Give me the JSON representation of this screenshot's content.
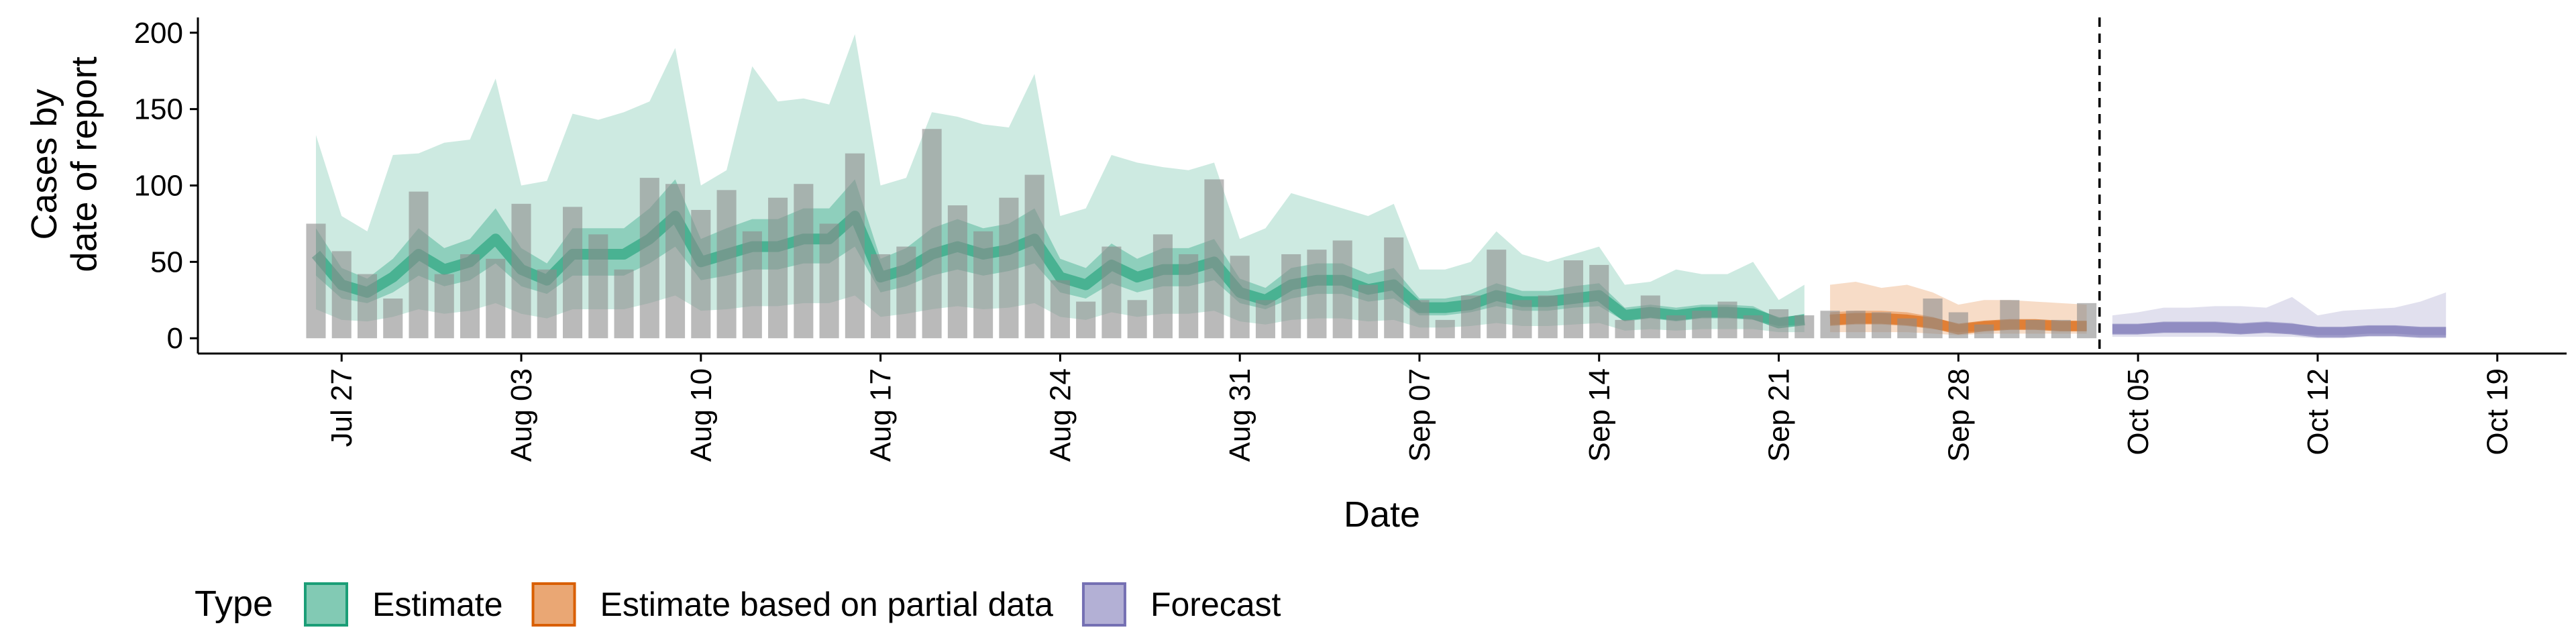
{
  "chart_data": {
    "type": "band",
    "y_label": [
      "Cases by",
      "date of report"
    ],
    "x_label": "Date",
    "legend_title": "Type",
    "xlim": [
      -5.6,
      86.7
    ],
    "ylim": [
      -10,
      210
    ],
    "yticks": [
      0,
      50,
      100,
      150,
      200
    ],
    "xticks": [
      {
        "value": 0,
        "label": "Jul 27"
      },
      {
        "value": 7,
        "label": "Aug 03"
      },
      {
        "value": 14,
        "label": "Aug 10"
      },
      {
        "value": 21,
        "label": "Aug 17"
      },
      {
        "value": 28,
        "label": "Aug 24"
      },
      {
        "value": 35,
        "label": "Aug 31"
      },
      {
        "value": 42,
        "label": "Sep 07"
      },
      {
        "value": 49,
        "label": "Sep 14"
      },
      {
        "value": 56,
        "label": "Sep 21"
      },
      {
        "value": 63,
        "label": "Sep 28"
      },
      {
        "value": 70,
        "label": "Oct 05"
      },
      {
        "value": 77,
        "label": "Oct 12"
      },
      {
        "value": 84,
        "label": "Oct 19"
      }
    ],
    "vline_x": 68.5,
    "bars": {
      "color": "#8c8c8c",
      "x": [
        -1,
        0,
        1,
        2,
        3,
        4,
        5,
        6,
        7,
        8,
        9,
        10,
        11,
        12,
        13,
        14,
        15,
        16,
        17,
        18,
        19,
        20,
        21,
        22,
        23,
        24,
        25,
        26,
        27,
        28,
        29,
        30,
        31,
        32,
        33,
        34,
        35,
        36,
        37,
        38,
        39,
        40,
        41,
        42,
        43,
        44,
        45,
        46,
        47,
        48,
        49,
        50,
        51,
        52,
        53,
        54,
        55,
        56,
        57,
        58,
        59,
        60,
        61,
        62,
        63,
        64,
        65,
        66,
        67,
        68
      ],
      "values": [
        75,
        57,
        42,
        26,
        96,
        42,
        55,
        52,
        88,
        45,
        86,
        68,
        45,
        105,
        101,
        84,
        97,
        70,
        92,
        101,
        75,
        121,
        55,
        60,
        137,
        87,
        70,
        92,
        107,
        38,
        24,
        60,
        25,
        68,
        55,
        104,
        54,
        25,
        55,
        58,
        64,
        35,
        66,
        25,
        12,
        28,
        58,
        25,
        28,
        51,
        48,
        12,
        28,
        15,
        18,
        24,
        15,
        19,
        15,
        18,
        18,
        17,
        13,
        26,
        17,
        9,
        25,
        12,
        12,
        23
      ]
    },
    "series": [
      {
        "name": "Estimate",
        "color": "#1b9e77",
        "x": [
          -1,
          0,
          1,
          2,
          3,
          4,
          5,
          6,
          7,
          8,
          9,
          10,
          11,
          12,
          13,
          14,
          15,
          16,
          17,
          18,
          19,
          20,
          21,
          22,
          23,
          24,
          25,
          26,
          27,
          28,
          29,
          30,
          31,
          32,
          33,
          34,
          35,
          36,
          37,
          38,
          39,
          40,
          41,
          42,
          43,
          44,
          45,
          46,
          47,
          48,
          49,
          50,
          51,
          52,
          53,
          54,
          55,
          56,
          57
        ],
        "median": [
          55,
          35,
          30,
          40,
          55,
          45,
          50,
          65,
          45,
          38,
          55,
          55,
          55,
          65,
          80,
          50,
          55,
          60,
          60,
          65,
          65,
          80,
          40,
          45,
          55,
          60,
          55,
          58,
          65,
          40,
          35,
          48,
          40,
          45,
          45,
          50,
          30,
          25,
          35,
          38,
          38,
          32,
          35,
          20,
          20,
          22,
          28,
          24,
          24,
          26,
          28,
          15,
          17,
          15,
          17,
          17,
          16,
          10,
          12
        ],
        "lower50": [
          41,
          26,
          23,
          30,
          41,
          34,
          38,
          49,
          34,
          29,
          41,
          41,
          41,
          49,
          60,
          38,
          41,
          45,
          45,
          49,
          49,
          60,
          30,
          34,
          41,
          45,
          41,
          44,
          49,
          30,
          26,
          36,
          30,
          34,
          34,
          38,
          23,
          19,
          26,
          29,
          29,
          24,
          26,
          15,
          15,
          17,
          21,
          18,
          18,
          20,
          21,
          11,
          13,
          11,
          13,
          13,
          12,
          8,
          9
        ],
        "upper50": [
          72,
          46,
          39,
          52,
          72,
          59,
          65,
          85,
          59,
          49,
          72,
          72,
          72,
          85,
          104,
          65,
          72,
          78,
          78,
          85,
          85,
          104,
          52,
          59,
          72,
          78,
          72,
          75,
          85,
          52,
          46,
          62,
          52,
          59,
          59,
          65,
          39,
          33,
          46,
          49,
          49,
          42,
          46,
          26,
          26,
          29,
          36,
          31,
          31,
          34,
          36,
          20,
          22,
          20,
          22,
          22,
          21,
          13,
          16
        ],
        "lower90": [
          19,
          12,
          11,
          14,
          19,
          16,
          18,
          23,
          16,
          13,
          19,
          19,
          19,
          23,
          28,
          18,
          19,
          21,
          21,
          23,
          23,
          28,
          14,
          16,
          19,
          21,
          19,
          20,
          23,
          14,
          12,
          17,
          14,
          16,
          16,
          18,
          11,
          9,
          12,
          13,
          13,
          11,
          12,
          7,
          7,
          8,
          10,
          8,
          8,
          9,
          10,
          5,
          6,
          5,
          6,
          6,
          6,
          4,
          4
        ],
        "upper90": [
          133,
          80,
          70,
          120,
          121,
          128,
          130,
          170,
          100,
          103,
          147,
          143,
          148,
          155,
          190,
          100,
          110,
          178,
          155,
          157,
          153,
          199,
          100,
          105,
          148,
          145,
          140,
          138,
          173,
          80,
          85,
          120,
          115,
          112,
          110,
          115,
          65,
          72,
          95,
          90,
          85,
          80,
          88,
          45,
          45,
          50,
          70,
          55,
          50,
          55,
          60,
          35,
          37,
          45,
          42,
          42,
          50,
          25,
          35
        ]
      },
      {
        "name": "Estimate based on partial data",
        "color": "#d95f02",
        "x": [
          58,
          59,
          60,
          61,
          62,
          63,
          64,
          65,
          66,
          67,
          68
        ],
        "median": [
          12,
          13,
          13,
          12,
          10,
          6,
          8,
          9,
          9,
          8,
          8
        ],
        "lower50": [
          8,
          9,
          9,
          8,
          6,
          4,
          5,
          6,
          6,
          5,
          5
        ],
        "upper50": [
          17,
          18,
          18,
          17,
          14,
          9,
          11,
          12,
          12,
          11,
          11
        ],
        "lower90": [
          4,
          4,
          4,
          4,
          3,
          2,
          3,
          3,
          3,
          3,
          3
        ],
        "upper90": [
          35,
          37,
          33,
          35,
          30,
          22,
          25,
          25,
          24,
          23,
          22
        ]
      },
      {
        "name": "Forecast",
        "color": "#7570b3",
        "x": [
          69,
          70,
          71,
          72,
          73,
          74,
          75,
          76,
          77,
          78,
          79,
          80,
          81,
          82
        ],
        "median": [
          6,
          6,
          7,
          7,
          7,
          6,
          7,
          6,
          4,
          4,
          5,
          5,
          4,
          4
        ],
        "lower50": [
          3,
          3,
          4,
          4,
          4,
          3,
          4,
          3,
          2,
          2,
          3,
          3,
          2,
          2
        ],
        "upper50": [
          9,
          9,
          11,
          11,
          11,
          10,
          11,
          10,
          7,
          7,
          8,
          8,
          7,
          7
        ],
        "lower90": [
          1,
          1,
          1,
          1,
          1,
          1,
          1,
          1,
          0,
          0,
          1,
          1,
          0,
          0
        ],
        "upper90": [
          15,
          17,
          20,
          20,
          21,
          21,
          20,
          27,
          15,
          18,
          19,
          20,
          24,
          30
        ]
      }
    ]
  }
}
